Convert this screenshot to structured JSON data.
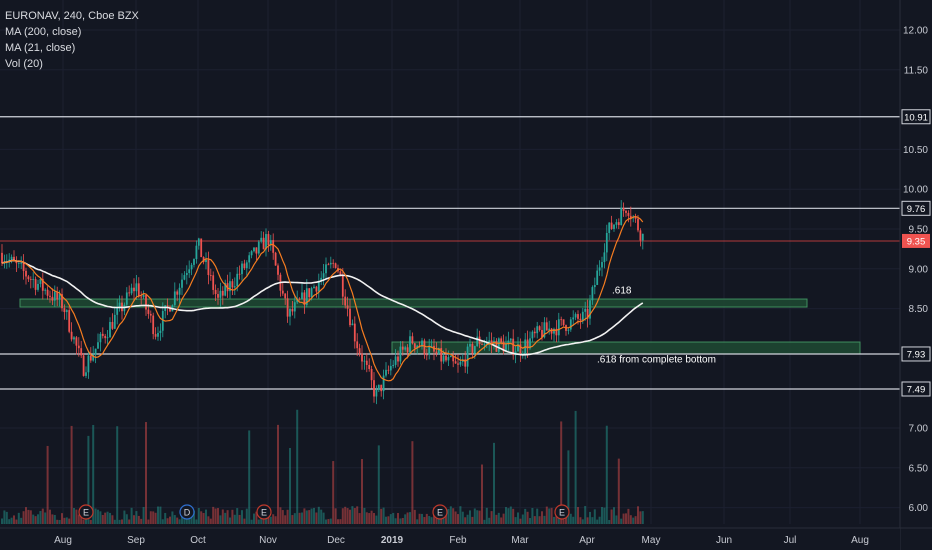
{
  "chart_header": {
    "title": "EURONAV, 240, Cboe BZX",
    "indicators": [
      "MA (200, close)",
      "MA (21, close)",
      "Vol (20)"
    ]
  },
  "colors": {
    "background": "#131722",
    "grid": "#1c2030",
    "axis_text": "#c8cbd3",
    "up_candle": "#26a69a",
    "down_candle": "#ef5350",
    "ma200": "#f2f2f2",
    "ma21": "#f57c20",
    "horizontal_line": "#d1d4dc",
    "last_price_line": "#b23a3a",
    "last_price_badge": "#ef5350",
    "zone_fill": "#1f4a33",
    "zone_border": "#3f8f5f",
    "earnings_marker": "#c0392b",
    "dividend_marker": "#2f6fd0"
  },
  "chart_data": {
    "type": "candlestick",
    "interval": "240",
    "x_axis_labels": [
      "Aug",
      "Sep",
      "Oct",
      "Nov",
      "Dec",
      "2019",
      "Feb",
      "Mar",
      "Apr",
      "May",
      "Jun",
      "Jul",
      "Aug"
    ],
    "y_axis_ticks": [
      "12.00",
      "11.50",
      "10.50",
      "10.00",
      "9.50",
      "9.00",
      "8.50",
      "7.00",
      "6.50",
      "6.00"
    ],
    "ylim": [
      5.9,
      12.3
    ],
    "price_path": [
      [
        "Jul",
        9.2
      ],
      [
        "Aug",
        8.55
      ],
      [
        "Aug",
        7.75
      ],
      [
        "Sep",
        8.8
      ],
      [
        "Sep",
        8.2
      ],
      [
        "Oct",
        9.3
      ],
      [
        "Oct",
        8.6
      ],
      [
        "Nov",
        9.4
      ],
      [
        "Nov",
        8.4
      ],
      [
        "Dec",
        9.1
      ],
      [
        "Dec",
        8.1
      ],
      [
        "Dec",
        7.4
      ],
      [
        "2019",
        7.8
      ],
      [
        "2019",
        8.1
      ],
      [
        "Feb",
        7.75
      ],
      [
        "Feb",
        8.1
      ],
      [
        "Mar",
        8.0
      ],
      [
        "Mar",
        8.2
      ],
      [
        "Apr",
        8.4
      ],
      [
        "Apr",
        9.45
      ],
      [
        "Apr",
        9.8
      ],
      [
        "May",
        9.35
      ]
    ],
    "last_price": 9.35,
    "horizontal_levels": [
      10.91,
      9.76,
      7.93,
      7.49
    ],
    "zones": [
      {
        "from": "Jul",
        "to": "Jun",
        "low": 8.52,
        "high": 8.62,
        "label": ".618"
      },
      {
        "from": "2019",
        "to": "Aug",
        "low": 7.93,
        "high": 8.08,
        "label": ".618 from complete bottom"
      }
    ],
    "events": [
      {
        "at": "Aug",
        "symbol": "E"
      },
      {
        "at": "Oct",
        "symbol": "D"
      },
      {
        "at": "Nov",
        "symbol": "E"
      },
      {
        "at": "Feb",
        "symbol": "E"
      },
      {
        "at": "Apr",
        "symbol": "E"
      }
    ],
    "grid": true,
    "volume": true
  }
}
